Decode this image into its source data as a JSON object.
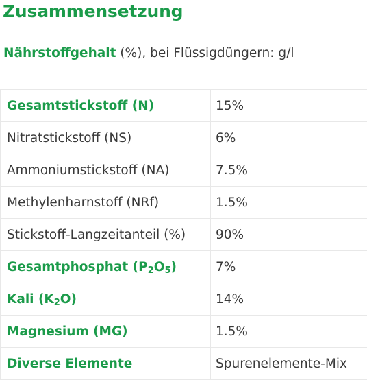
{
  "title": "Zusammensetzung",
  "subtitle": {
    "bold": "Nährstoffgehalt",
    "rest": " (%), bei Flüssigdüngern: g/l"
  },
  "rows": [
    {
      "label": "Gesamtstickstoff (N)",
      "value": "15%",
      "bold": true
    },
    {
      "label": "Nitratstickstoff (NS)",
      "value": "6%",
      "bold": false
    },
    {
      "label": "Ammoniumstickstoff (NA)",
      "value": "7.5%",
      "bold": false
    },
    {
      "label": "Methylenharnstoff (NRf)",
      "value": "1.5%",
      "bold": false
    },
    {
      "label": "Stickstoff-Langzeitanteil (%)",
      "value": "90%",
      "bold": false
    },
    {
      "label_parts": [
        "Gesamtphosphat (P",
        "2",
        "O",
        "5",
        ")"
      ],
      "label": "Gesamtphosphat (P2O5)",
      "value": "7%",
      "bold": true
    },
    {
      "label_parts": [
        "Kali (K",
        "2",
        "O)"
      ],
      "label": "Kali (K2O)",
      "value": "14%",
      "bold": true
    },
    {
      "label": "Magnesium (MG)",
      "value": "1.5%",
      "bold": true
    },
    {
      "label": "Diverse Elemente",
      "value": "Spurenelemente-Mix",
      "bold": true
    }
  ],
  "colors": {
    "accent": "#1b9b4a",
    "text": "#3a3a3a",
    "border": "#e8e8e8"
  }
}
